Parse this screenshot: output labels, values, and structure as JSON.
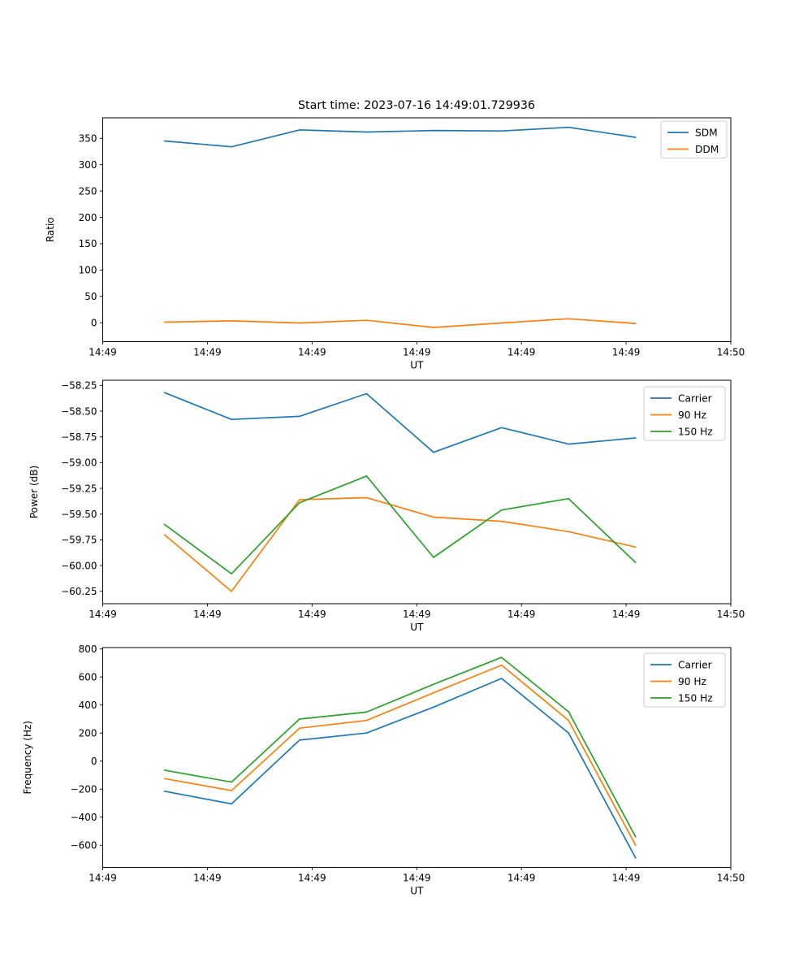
{
  "figure": {
    "title": "Start time: 2023-07-16 14:49:01.729936",
    "background_color": "#ffffff",
    "text_color": "#000000",
    "frame_color": "#000000",
    "legend_border_color": "#cccccc"
  },
  "chart_data": [
    {
      "type": "line",
      "title": "",
      "xlabel": "UT",
      "ylabel": "Ratio",
      "grid": false,
      "legend_position": "upper right",
      "xlim_seconds": [
        0,
        60
      ],
      "x_tick_seconds": [
        0,
        10,
        20,
        30,
        40,
        50,
        60
      ],
      "x_tick_labels": [
        "14:49",
        "14:49",
        "14:49",
        "14:49",
        "14:49",
        "14:49",
        "14:50"
      ],
      "y_tick_values": [
        0,
        50,
        100,
        150,
        200,
        250,
        300,
        350
      ],
      "y_tick_labels": [
        "0",
        "50",
        "100",
        "150",
        "200",
        "250",
        "300",
        "350"
      ],
      "ylim": [
        -36,
        389
      ],
      "x_seconds": [
        5.9,
        12.3,
        18.8,
        25.2,
        31.6,
        38.1,
        44.5,
        50.9
      ],
      "series": [
        {
          "name": "SDM",
          "color": "#1f77b4",
          "values": [
            345,
            334,
            366,
            362,
            365,
            364,
            371,
            352
          ]
        },
        {
          "name": "DDM",
          "color": "#ff7f0e",
          "values": [
            1,
            3.5,
            -0.5,
            4.5,
            -9,
            -0.5,
            7.5,
            -1.5
          ]
        }
      ]
    },
    {
      "type": "line",
      "title": "",
      "xlabel": "UT",
      "ylabel": "Power (dB)",
      "grid": false,
      "legend_position": "upper right",
      "xlim_seconds": [
        0,
        60
      ],
      "x_tick_seconds": [
        0,
        10,
        20,
        30,
        40,
        50,
        60
      ],
      "x_tick_labels": [
        "14:49",
        "14:49",
        "14:49",
        "14:49",
        "14:49",
        "14:49",
        "14:50"
      ],
      "y_tick_values": [
        -60.25,
        -60.0,
        -59.75,
        -59.5,
        -59.25,
        -59.0,
        -58.75,
        -58.5,
        -58.25
      ],
      "y_tick_labels": [
        "−60.25",
        "−60.00",
        "−59.75",
        "−59.50",
        "−59.25",
        "−59.00",
        "−58.75",
        "−58.50",
        "−58.25"
      ],
      "ylim": [
        -60.37,
        -58.2
      ],
      "x_seconds": [
        5.9,
        12.3,
        18.8,
        25.2,
        31.6,
        38.1,
        44.5,
        50.9
      ],
      "series": [
        {
          "name": "Carrier",
          "color": "#1f77b4",
          "values": [
            -58.32,
            -58.58,
            -58.55,
            -58.33,
            -58.9,
            -58.66,
            -58.82,
            -58.76
          ]
        },
        {
          "name": "90 Hz",
          "color": "#ff7f0e",
          "values": [
            -59.7,
            -60.25,
            -59.36,
            -59.34,
            -59.53,
            -59.57,
            -59.67,
            -59.82
          ]
        },
        {
          "name": "150 Hz",
          "color": "#2ca02c",
          "values": [
            -59.6,
            -60.08,
            -59.39,
            -59.13,
            -59.92,
            -59.46,
            -59.35,
            -59.97
          ]
        }
      ]
    },
    {
      "type": "line",
      "title": "",
      "xlabel": "UT",
      "ylabel": "Frequency (Hz)",
      "grid": false,
      "legend_position": "upper right",
      "xlim_seconds": [
        0,
        60
      ],
      "x_tick_seconds": [
        0,
        10,
        20,
        30,
        40,
        50,
        60
      ],
      "x_tick_labels": [
        "14:49",
        "14:49",
        "14:49",
        "14:49",
        "14:49",
        "14:49",
        "14:50"
      ],
      "y_tick_values": [
        -600,
        -400,
        -200,
        0,
        200,
        400,
        600,
        800
      ],
      "y_tick_labels": [
        "−600",
        "−400",
        "−200",
        "0",
        "200",
        "400",
        "600",
        "800"
      ],
      "ylim": [
        -758,
        810
      ],
      "x_seconds": [
        5.9,
        12.3,
        18.8,
        25.2,
        31.6,
        38.1,
        44.5,
        50.9
      ],
      "series": [
        {
          "name": "Carrier",
          "color": "#1f77b4",
          "values": [
            -215,
            -305,
            150,
            200,
            385,
            590,
            200,
            -690
          ]
        },
        {
          "name": "90 Hz",
          "color": "#ff7f0e",
          "values": [
            -125,
            -210,
            235,
            290,
            487,
            685,
            290,
            -600
          ]
        },
        {
          "name": "150 Hz",
          "color": "#2ca02c",
          "values": [
            -65,
            -150,
            300,
            350,
            548,
            740,
            352,
            -540
          ]
        }
      ]
    }
  ]
}
